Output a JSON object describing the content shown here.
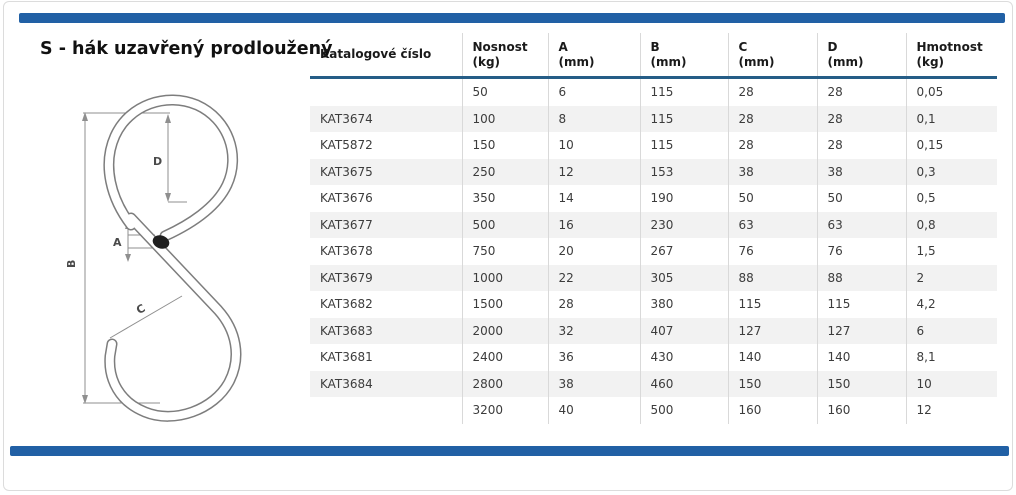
{
  "page": {
    "title": "S - hák uzavřený prodloužený",
    "accent_color": "#2160a5",
    "header_underline_color": "#255d87",
    "row_stripe_color": "#f2f2f2"
  },
  "diagram": {
    "name": "s-hook-technical-drawing",
    "labels": {
      "a": "A",
      "b": "B",
      "c": "C",
      "d": "D"
    }
  },
  "table": {
    "columns": [
      {
        "label": "Katalogové číslo",
        "unit": ""
      },
      {
        "label": "Nosnost",
        "unit": "(kg)"
      },
      {
        "label": "A",
        "unit": "(mm)"
      },
      {
        "label": "B",
        "unit": "(mm)"
      },
      {
        "label": "C",
        "unit": "(mm)"
      },
      {
        "label": "D",
        "unit": "(mm)"
      },
      {
        "label": "Hmotnost",
        "unit": "(kg)"
      }
    ],
    "rows": [
      [
        "",
        "50",
        "6",
        "115",
        "28",
        "28",
        "0,05"
      ],
      [
        "KAT3674",
        "100",
        "8",
        "115",
        "28",
        "28",
        "0,1"
      ],
      [
        "KAT5872",
        "150",
        "10",
        "115",
        "28",
        "28",
        "0,15"
      ],
      [
        "KAT3675",
        "250",
        "12",
        "153",
        "38",
        "38",
        "0,3"
      ],
      [
        "KAT3676",
        "350",
        "14",
        "190",
        "50",
        "50",
        "0,5"
      ],
      [
        "KAT3677",
        "500",
        "16",
        "230",
        "63",
        "63",
        "0,8"
      ],
      [
        "KAT3678",
        "750",
        "20",
        "267",
        "76",
        "76",
        "1,5"
      ],
      [
        "KAT3679",
        "1000",
        "22",
        "305",
        "88",
        "88",
        "2"
      ],
      [
        "KAT3682",
        "1500",
        "28",
        "380",
        "115",
        "115",
        "4,2"
      ],
      [
        "KAT3683",
        "2000",
        "32",
        "407",
        "127",
        "127",
        "6"
      ],
      [
        "KAT3681",
        "2400",
        "36",
        "430",
        "140",
        "140",
        "8,1"
      ],
      [
        "KAT3684",
        "2800",
        "38",
        "460",
        "150",
        "150",
        "10"
      ],
      [
        "",
        "3200",
        "40",
        "500",
        "160",
        "160",
        "12"
      ]
    ]
  }
}
